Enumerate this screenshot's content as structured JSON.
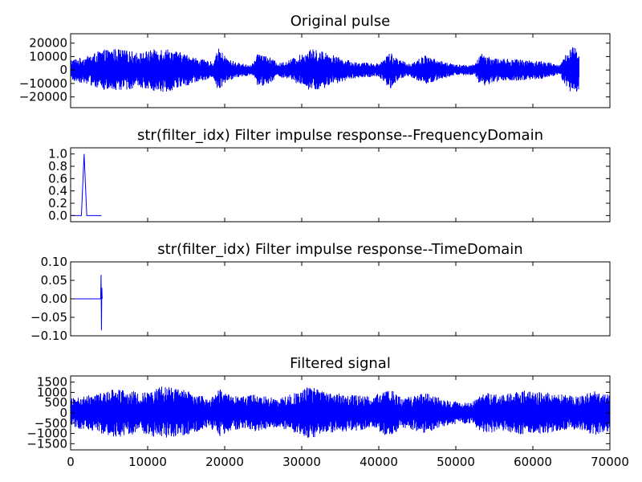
{
  "chart_data": [
    {
      "type": "line",
      "title": "Original pulse",
      "xlim": [
        0,
        70000
      ],
      "ylim": [
        -28000,
        27000
      ],
      "yticks": [
        -20000,
        -10000,
        0,
        10000,
        20000
      ],
      "ytick_labels": [
        "−20000",
        "−10000",
        "0",
        "10000",
        "20000"
      ],
      "grid": false,
      "color": "#0000ff",
      "signal": {
        "length": 66000,
        "envelope_x": [
          0,
          2000,
          4000,
          6000,
          9000,
          12000,
          15000,
          17000,
          18500,
          19200,
          20500,
          22000,
          23500,
          24500,
          26000,
          27000,
          28500,
          30000,
          31000,
          33000,
          35000,
          37000,
          40000,
          41500,
          42500,
          44000,
          46000,
          48000,
          50000,
          52500,
          53200,
          55000,
          58000,
          61000,
          63500,
          65000,
          66000
        ],
        "envelope_y": [
          8000,
          10000,
          15000,
          16000,
          13000,
          17000,
          12000,
          8000,
          6000,
          16000,
          8000,
          5000,
          4000,
          14000,
          9000,
          5000,
          8000,
          12000,
          16000,
          14000,
          9000,
          6000,
          5000,
          14000,
          8000,
          5000,
          11000,
          7000,
          4000,
          4000,
          13000,
          9000,
          8000,
          7000,
          4000,
          19000,
          16000
        ]
      }
    },
    {
      "type": "line",
      "title": "str(filter_idx) Filter impulse response--FrequencyDomain",
      "xlim": [
        0,
        70000
      ],
      "ylim": [
        -0.1,
        1.1
      ],
      "yticks": [
        0.0,
        0.2,
        0.4,
        0.6,
        0.8,
        1.0
      ],
      "ytick_labels": [
        "0.0",
        "0.2",
        "0.4",
        "0.6",
        "0.8",
        "1.0"
      ],
      "grid": false,
      "color": "#0000ff",
      "x": [
        0,
        1400,
        1750,
        2100,
        4000
      ],
      "y": [
        0,
        0,
        1,
        0,
        0
      ]
    },
    {
      "type": "line",
      "title": "str(filter_idx) Filter impulse response--TimeDomain",
      "xlim": [
        0,
        70000
      ],
      "ylim": [
        -0.1,
        0.1
      ],
      "yticks": [
        -0.1,
        -0.05,
        0.0,
        0.05,
        0.1
      ],
      "ytick_labels": [
        "−0.10",
        "−0.05",
        "0.00",
        "0.05",
        "0.10"
      ],
      "grid": false,
      "color": "#0000ff",
      "x": [
        0,
        3900,
        3950,
        4000,
        4050,
        4100
      ],
      "y": [
        0,
        0,
        0.065,
        -0.085,
        0.03,
        0
      ]
    },
    {
      "type": "line",
      "title": "Filtered signal",
      "xlim": [
        0,
        70000
      ],
      "ylim": [
        -1800,
        1800
      ],
      "yticks": [
        -1500,
        -1000,
        -500,
        0,
        500,
        1000,
        1500
      ],
      "ytick_labels": [
        "−1500",
        "−1000",
        "−500",
        "0",
        "500",
        "1000",
        "1500"
      ],
      "xticks": [
        0,
        10000,
        20000,
        30000,
        40000,
        50000,
        60000,
        70000
      ],
      "xtick_labels": [
        "0",
        "10000",
        "20000",
        "30000",
        "40000",
        "50000",
        "60000",
        "70000"
      ],
      "grid": false,
      "color": "#0000ff",
      "signal": {
        "length": 70000,
        "envelope_x": [
          0,
          3000,
          6000,
          9000,
          12000,
          15000,
          18000,
          19500,
          21000,
          24000,
          27000,
          30000,
          31000,
          33000,
          36000,
          39000,
          41500,
          43000,
          46000,
          49000,
          52000,
          53500,
          56000,
          59000,
          61500,
          64000,
          66000,
          68000,
          70000
        ],
        "envelope_y": [
          700,
          900,
          1200,
          1000,
          1300,
          1100,
          700,
          1200,
          800,
          900,
          700,
          1100,
          1300,
          1000,
          900,
          800,
          1200,
          700,
          1000,
          600,
          500,
          1000,
          900,
          1100,
          1000,
          900,
          800,
          1100,
          900
        ]
      }
    }
  ]
}
